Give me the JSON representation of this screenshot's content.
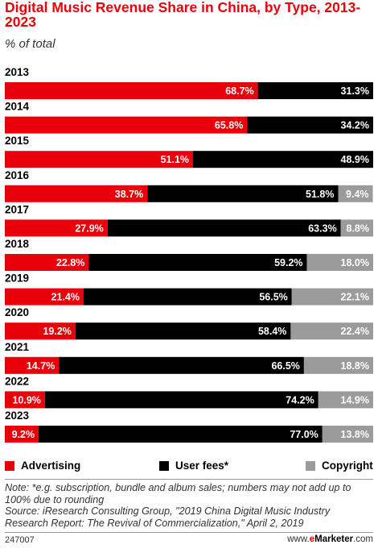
{
  "header": {
    "title": "Digital Music Revenue Share in China, by Type, 2013-2023",
    "subtitle": "% of total"
  },
  "colors": {
    "advertising": "#e8000b",
    "user_fees": "#000000",
    "copyright": "#9b9b9b",
    "title": "#e8000b"
  },
  "chart_data": {
    "type": "bar",
    "orientation": "horizontal",
    "stacked": true,
    "title": "Digital Music Revenue Share in China, by Type, 2013-2023",
    "subtitle": "% of total",
    "categories": [
      "2013",
      "2014",
      "2015",
      "2016",
      "2017",
      "2018",
      "2019",
      "2020",
      "2021",
      "2022",
      "2023"
    ],
    "series": [
      {
        "name": "Advertising",
        "values": [
          68.7,
          65.8,
          51.1,
          38.7,
          27.9,
          22.8,
          21.4,
          19.2,
          14.7,
          10.9,
          9.2
        ]
      },
      {
        "name": "User fees*",
        "values": [
          31.3,
          34.2,
          48.9,
          51.8,
          63.3,
          59.2,
          56.5,
          58.4,
          66.5,
          74.2,
          77.0
        ]
      },
      {
        "name": "Copyright",
        "values": [
          null,
          null,
          null,
          9.4,
          8.8,
          18.0,
          22.1,
          22.4,
          18.8,
          14.9,
          13.8
        ]
      }
    ],
    "value_labels": [
      [
        "68.7%",
        "31.3%",
        ""
      ],
      [
        "65.8%",
        "34.2%",
        ""
      ],
      [
        "51.1%",
        "48.9%",
        ""
      ],
      [
        "38.7%",
        "51.8%",
        "9.4%"
      ],
      [
        "27.9%",
        "63.3%",
        "8.8%"
      ],
      [
        "22.8%",
        "59.2%",
        "18.0%"
      ],
      [
        "21.4%",
        "56.5%",
        "22.1%"
      ],
      [
        "19.2%",
        "58.4%",
        "22.4%"
      ],
      [
        "14.7%",
        "66.5%",
        "18.8%"
      ],
      [
        "10.9%",
        "74.2%",
        "14.9%"
      ],
      [
        "9.2%",
        "77.0%",
        "13.8%"
      ]
    ],
    "xlim": [
      0,
      100
    ],
    "grid": false,
    "legend": "bottom"
  },
  "legend": {
    "advertising": "Advertising",
    "user_fees": "User fees*",
    "copyright": "Copyright"
  },
  "footnote": {
    "note": "Note: *e.g. subscription, bundle and album sales; numbers may not add up to 100% due to rounding",
    "source": "Source: iResearch Consulting Group, \"2019 China Digital Music Industry Research Report: The Revival of Commercialization,\" April 2, 2019"
  },
  "footer": {
    "chart_id": "247007",
    "brand_prefix": "www.",
    "brand_e": "e",
    "brand_main": "Marketer",
    "brand_suffix": ".com"
  }
}
